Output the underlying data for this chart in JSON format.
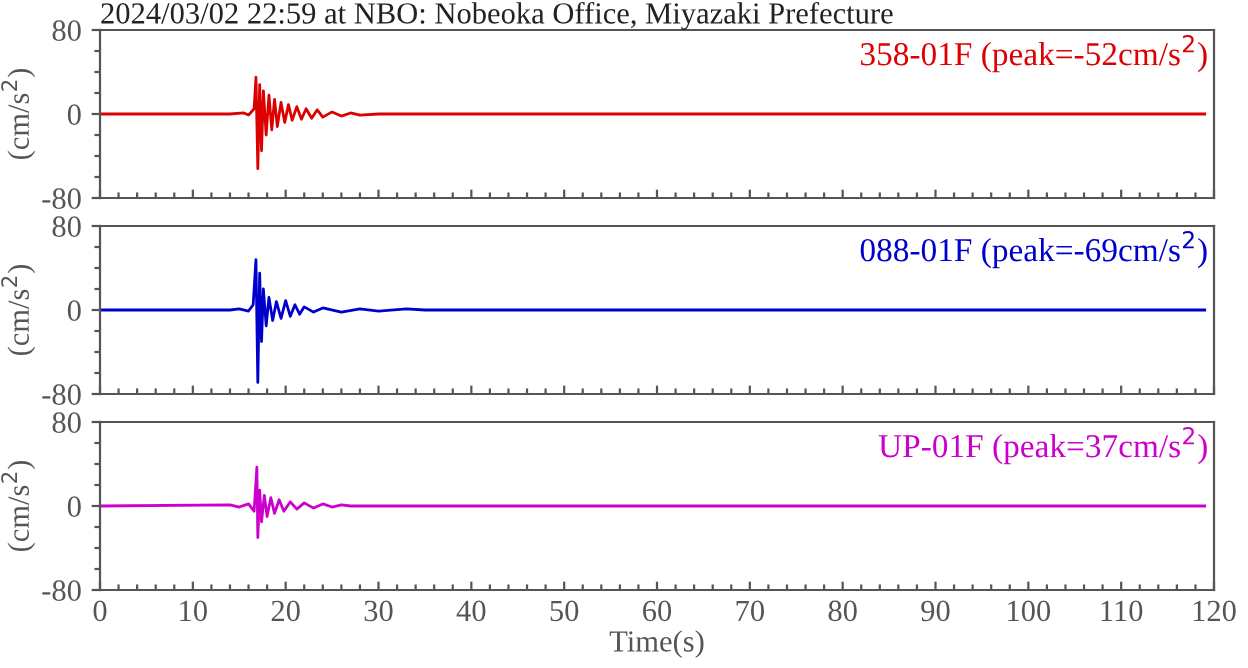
{
  "chart_data": [
    {
      "type": "line",
      "title": "2024/03/02 22:59 at NBO: Nobeoka Office, Miyazaki Prefecture",
      "ylabel": "(cm/s$^{2}$)",
      "annotations": [
        "358-01F (peak=-52cm/s$^{2}$)"
      ],
      "tick_labels": "y",
      "grid": false,
      "xlim": [
        0,
        120
      ],
      "ylim": [
        -80,
        80
      ],
      "xticks": [
        0,
        {
          "value": 2,
          "label": null
        },
        {
          "value": 4,
          "label": null
        },
        {
          "value": 6,
          "label": null
        },
        {
          "value": 8,
          "label": null
        },
        10,
        {
          "value": 12,
          "label": null
        },
        {
          "value": 14,
          "label": null
        },
        {
          "value": 16,
          "label": null
        },
        {
          "value": 18,
          "label": null
        },
        20,
        {
          "value": 22,
          "label": null
        },
        {
          "value": 24,
          "label": null
        },
        {
          "value": 26,
          "label": null
        },
        {
          "value": 28,
          "label": null
        },
        30,
        {
          "value": 32,
          "label": null
        },
        {
          "value": 34,
          "label": null
        },
        {
          "value": 36,
          "label": null
        },
        {
          "value": 38,
          "label": null
        },
        40,
        {
          "value": 42,
          "label": null
        },
        {
          "value": 44,
          "label": null
        },
        {
          "value": 46,
          "label": null
        },
        {
          "value": 48,
          "label": null
        },
        50,
        {
          "value": 52,
          "label": null
        },
        {
          "value": 54,
          "label": null
        },
        {
          "value": 56,
          "label": null
        },
        {
          "value": 58,
          "label": null
        },
        60,
        {
          "value": 62,
          "label": null
        },
        {
          "value": 64,
          "label": null
        },
        {
          "value": 66,
          "label": null
        },
        {
          "value": 68,
          "label": null
        },
        70,
        {
          "value": 72,
          "label": null
        },
        {
          "value": 74,
          "label": null
        },
        {
          "value": 76,
          "label": null
        },
        {
          "value": 78,
          "label": null
        },
        80,
        {
          "value": 82,
          "label": null
        },
        {
          "value": 84,
          "label": null
        },
        {
          "value": 86,
          "label": null
        },
        {
          "value": 88,
          "label": null
        },
        90,
        {
          "value": 92,
          "label": null
        },
        {
          "value": 94,
          "label": null
        },
        {
          "value": 96,
          "label": null
        },
        {
          "value": 98,
          "label": null
        },
        100,
        {
          "value": 102,
          "label": null
        },
        {
          "value": 104,
          "label": null
        },
        {
          "value": 106,
          "label": null
        },
        {
          "value": 108,
          "label": null
        },
        110,
        {
          "value": 112,
          "label": null
        },
        {
          "value": 114,
          "label": null
        },
        {
          "value": 116,
          "label": null
        },
        {
          "value": 118,
          "label": null
        },
        120
      ],
      "yticks": [
        {
          "value": -80,
          "label": "-80"
        },
        {
          "value": -60,
          "label": null
        },
        {
          "value": -40,
          "label": null
        },
        {
          "value": -20,
          "label": null
        },
        0,
        {
          "value": 20,
          "label": null
        },
        {
          "value": 40,
          "label": null
        },
        {
          "value": 60,
          "label": null
        },
        80
      ],
      "series": [
        {
          "color": "#dd0000",
          "x": [
            0,
            14,
            15.5,
            16,
            16.6,
            16.8,
            17.0,
            17.2,
            17.4,
            17.6,
            17.9,
            18.2,
            18.5,
            18.8,
            19.1,
            19.5,
            19.9,
            20.3,
            20.7,
            21.2,
            21.7,
            22.2,
            22.8,
            23.4,
            24,
            25,
            26,
            27,
            28,
            30,
            119
          ],
          "values": [
            0,
            0,
            1,
            -1,
            5,
            35,
            -52,
            28,
            -35,
            22,
            -20,
            18,
            -15,
            14,
            -12,
            11,
            -8,
            9,
            -6,
            7,
            -5,
            5,
            -4,
            4,
            -3,
            2,
            -2,
            1,
            -1,
            0,
            0
          ]
        }
      ]
    },
    {
      "type": "line",
      "ylabel": "(cm/s$^{2}$)",
      "annotations": [
        "088-01F (peak=-69cm/s$^{2}$)"
      ],
      "tick_labels": "y",
      "grid": false,
      "xlim": [
        0,
        120
      ],
      "ylim": [
        -80,
        80
      ],
      "xticks": [
        0,
        {
          "value": 2,
          "label": null
        },
        {
          "value": 4,
          "label": null
        },
        {
          "value": 6,
          "label": null
        },
        {
          "value": 8,
          "label": null
        },
        10,
        {
          "value": 12,
          "label": null
        },
        {
          "value": 14,
          "label": null
        },
        {
          "value": 16,
          "label": null
        },
        {
          "value": 18,
          "label": null
        },
        20,
        {
          "value": 22,
          "label": null
        },
        {
          "value": 24,
          "label": null
        },
        {
          "value": 26,
          "label": null
        },
        {
          "value": 28,
          "label": null
        },
        30,
        {
          "value": 32,
          "label": null
        },
        {
          "value": 34,
          "label": null
        },
        {
          "value": 36,
          "label": null
        },
        {
          "value": 38,
          "label": null
        },
        40,
        {
          "value": 42,
          "label": null
        },
        {
          "value": 44,
          "label": null
        },
        {
          "value": 46,
          "label": null
        },
        {
          "value": 48,
          "label": null
        },
        50,
        {
          "value": 52,
          "label": null
        },
        {
          "value": 54,
          "label": null
        },
        {
          "value": 56,
          "label": null
        },
        {
          "value": 58,
          "label": null
        },
        60,
        {
          "value": 62,
          "label": null
        },
        {
          "value": 64,
          "label": null
        },
        {
          "value": 66,
          "label": null
        },
        {
          "value": 68,
          "label": null
        },
        70,
        {
          "value": 72,
          "label": null
        },
        {
          "value": 74,
          "label": null
        },
        {
          "value": 76,
          "label": null
        },
        {
          "value": 78,
          "label": null
        },
        80,
        {
          "value": 82,
          "label": null
        },
        {
          "value": 84,
          "label": null
        },
        {
          "value": 86,
          "label": null
        },
        {
          "value": 88,
          "label": null
        },
        90,
        {
          "value": 92,
          "label": null
        },
        {
          "value": 94,
          "label": null
        },
        {
          "value": 96,
          "label": null
        },
        {
          "value": 98,
          "label": null
        },
        100,
        {
          "value": 102,
          "label": null
        },
        {
          "value": 104,
          "label": null
        },
        {
          "value": 106,
          "label": null
        },
        {
          "value": 108,
          "label": null
        },
        110,
        {
          "value": 112,
          "label": null
        },
        {
          "value": 114,
          "label": null
        },
        {
          "value": 116,
          "label": null
        },
        {
          "value": 118,
          "label": null
        },
        120
      ],
      "yticks": [
        {
          "value": -80,
          "label": "-80"
        },
        {
          "value": -60,
          "label": null
        },
        {
          "value": -40,
          "label": null
        },
        {
          "value": -20,
          "label": null
        },
        0,
        {
          "value": 20,
          "label": null
        },
        {
          "value": 40,
          "label": null
        },
        {
          "value": 60,
          "label": null
        },
        80
      ],
      "series": [
        {
          "color": "#0000cc",
          "x": [
            0,
            14,
            15,
            16,
            16.5,
            16.8,
            17.0,
            17.2,
            17.4,
            17.6,
            17.9,
            18.2,
            18.6,
            19,
            19.5,
            20,
            20.5,
            21,
            21.5,
            22,
            23,
            24,
            26,
            28,
            30,
            33,
            35,
            119
          ],
          "values": [
            0,
            0,
            1,
            -1,
            5,
            48,
            -69,
            35,
            -30,
            20,
            -15,
            12,
            -10,
            8,
            -8,
            9,
            -6,
            5,
            -4,
            3,
            -2,
            2,
            -2,
            1,
            -1,
            1,
            0,
            0
          ]
        }
      ]
    },
    {
      "type": "line",
      "xlabel": "Time(s)",
      "ylabel": "(cm/s$^{2}$)",
      "annotations": [
        "UP-01F (peak=37cm/s$^{2}$)"
      ],
      "grid": false,
      "xlim": [
        0,
        120
      ],
      "ylim": [
        -80,
        80
      ],
      "xticks": [
        0,
        {
          "value": 2,
          "label": null
        },
        {
          "value": 4,
          "label": null
        },
        {
          "value": 6,
          "label": null
        },
        {
          "value": 8,
          "label": null
        },
        10,
        {
          "value": 12,
          "label": null
        },
        {
          "value": 14,
          "label": null
        },
        {
          "value": 16,
          "label": null
        },
        {
          "value": 18,
          "label": null
        },
        20,
        {
          "value": 22,
          "label": null
        },
        {
          "value": 24,
          "label": null
        },
        {
          "value": 26,
          "label": null
        },
        {
          "value": 28,
          "label": null
        },
        30,
        {
          "value": 32,
          "label": null
        },
        {
          "value": 34,
          "label": null
        },
        {
          "value": 36,
          "label": null
        },
        {
          "value": 38,
          "label": null
        },
        40,
        {
          "value": 42,
          "label": null
        },
        {
          "value": 44,
          "label": null
        },
        {
          "value": 46,
          "label": null
        },
        {
          "value": 48,
          "label": null
        },
        50,
        {
          "value": 52,
          "label": null
        },
        {
          "value": 54,
          "label": null
        },
        {
          "value": 56,
          "label": null
        },
        {
          "value": 58,
          "label": null
        },
        60,
        {
          "value": 62,
          "label": null
        },
        {
          "value": 64,
          "label": null
        },
        {
          "value": 66,
          "label": null
        },
        {
          "value": 68,
          "label": null
        },
        70,
        {
          "value": 72,
          "label": null
        },
        {
          "value": 74,
          "label": null
        },
        {
          "value": 76,
          "label": null
        },
        {
          "value": 78,
          "label": null
        },
        80,
        {
          "value": 82,
          "label": null
        },
        {
          "value": 84,
          "label": null
        },
        {
          "value": 86,
          "label": null
        },
        {
          "value": 88,
          "label": null
        },
        90,
        {
          "value": 92,
          "label": null
        },
        {
          "value": 94,
          "label": null
        },
        {
          "value": 96,
          "label": null
        },
        {
          "value": 98,
          "label": null
        },
        100,
        {
          "value": 102,
          "label": null
        },
        {
          "value": 104,
          "label": null
        },
        {
          "value": 106,
          "label": null
        },
        {
          "value": 108,
          "label": null
        },
        110,
        {
          "value": 112,
          "label": null
        },
        {
          "value": 114,
          "label": null
        },
        {
          "value": 116,
          "label": null
        },
        {
          "value": 118,
          "label": null
        },
        120
      ],
      "yticks": [
        {
          "value": -80,
          "label": "-80"
        },
        {
          "value": -60,
          "label": null
        },
        {
          "value": -40,
          "label": null
        },
        {
          "value": -20,
          "label": null
        },
        0,
        {
          "value": 20,
          "label": null
        },
        {
          "value": 40,
          "label": null
        },
        {
          "value": 60,
          "label": null
        },
        80
      ],
      "series": [
        {
          "color": "#cc00cc",
          "x": [
            0,
            14,
            15,
            16,
            16.6,
            16.9,
            17.0,
            17.2,
            17.4,
            17.7,
            18,
            18.4,
            18.8,
            19.3,
            19.8,
            20.5,
            21.2,
            22,
            23,
            24,
            25,
            26,
            27,
            119
          ],
          "values": [
            0,
            1,
            -1,
            2,
            -5,
            37,
            -30,
            15,
            -15,
            10,
            -10,
            8,
            -7,
            6,
            -5,
            4,
            -3,
            3,
            -2,
            2,
            -1,
            1,
            0,
            0
          ]
        }
      ]
    }
  ]
}
